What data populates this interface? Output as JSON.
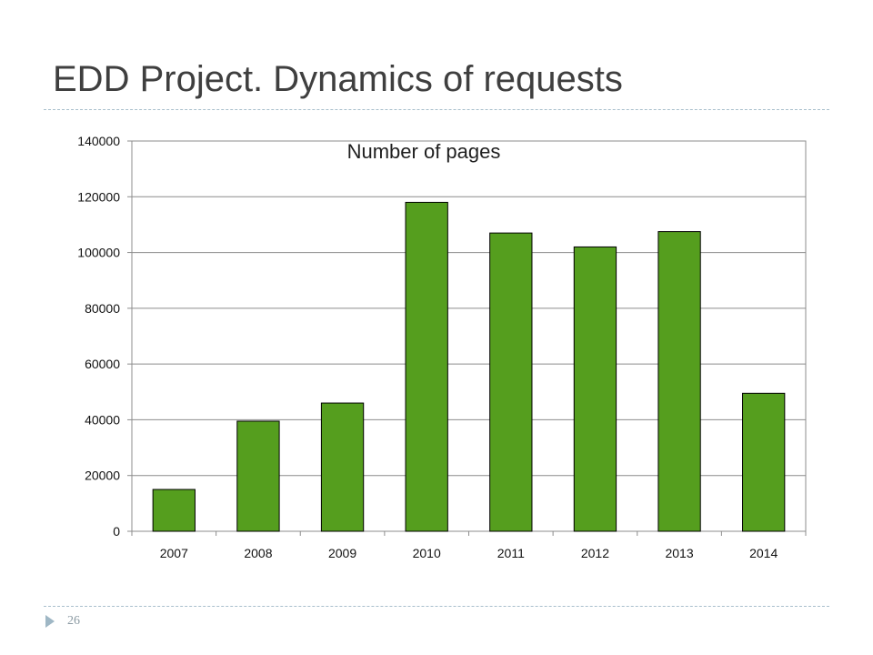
{
  "slide": {
    "title": "EDD Project. Dynamics of requests",
    "page_number": "26"
  },
  "colors": {
    "bar_fill": "#559e1e",
    "bar_stroke": "#000000",
    "grid": "#8c8c8c",
    "title_text": "#3f3f3f",
    "divider": "#a9bfcc",
    "footer_marker": "#9fb7c5"
  },
  "chart_data": {
    "type": "bar",
    "title": "Number of pages",
    "categories": [
      "2007",
      "2008",
      "2009",
      "2010",
      "2011",
      "2012",
      "2013",
      "2014"
    ],
    "values": [
      15000,
      39500,
      46000,
      118000,
      107000,
      102000,
      107500,
      49500
    ],
    "y_ticks": [
      "0",
      "20000",
      "40000",
      "60000",
      "80000",
      "100000",
      "120000",
      "140000"
    ],
    "xlabel": "",
    "ylabel": "",
    "ylim": [
      0,
      140000
    ],
    "grid": true,
    "legend": "none"
  }
}
